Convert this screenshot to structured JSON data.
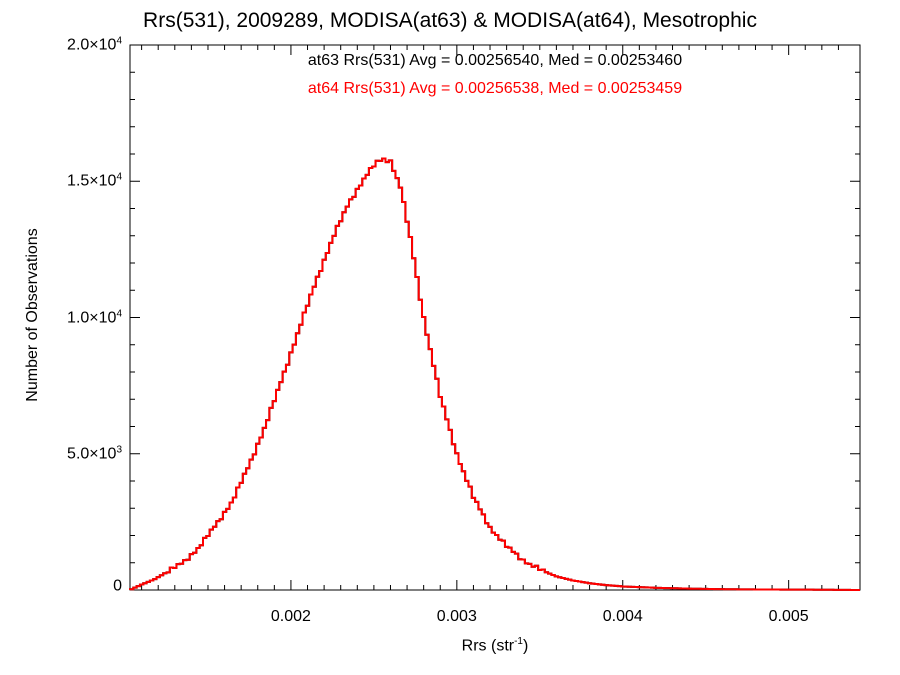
{
  "chart_data": {
    "type": "histogram-step",
    "title": "Rrs(531), 2009289, MODISA(at63) & MODISA(at64), Mesotrophic",
    "xlabel": {
      "text": "Rrs (str",
      "sup": "-1",
      "close": ")"
    },
    "ylabel": "Number of Observations",
    "xlim": [
      0.00103,
      0.00543
    ],
    "ylim": [
      0,
      20000
    ],
    "x_ticks": [
      {
        "value": 0.002,
        "label": "0.002"
      },
      {
        "value": 0.003,
        "label": "0.003"
      },
      {
        "value": 0.004,
        "label": "0.004"
      },
      {
        "value": 0.005,
        "label": "0.005"
      }
    ],
    "y_ticks": [
      {
        "value": 0,
        "mant": "0",
        "exp": ""
      },
      {
        "value": 5000,
        "mant": "5.0×10",
        "exp": "3"
      },
      {
        "value": 10000,
        "mant": "1.0×10",
        "exp": "4"
      },
      {
        "value": 15000,
        "mant": "1.5×10",
        "exp": "4"
      },
      {
        "value": 20000,
        "mant": "2.0×10",
        "exp": "4"
      }
    ],
    "annotations": [
      {
        "text": "at63 Rrs(531) Avg = 0.00256540, Med = 0.00253460",
        "color": "#000000"
      },
      {
        "text": "at64 Rrs(531) Avg = 0.00256538, Med = 0.00253459",
        "color": "#ff0000"
      }
    ],
    "series": [
      {
        "name": "at63",
        "color": "#000000"
      },
      {
        "name": "at64",
        "color": "#ff0000"
      }
    ],
    "x": [
      0.00103,
      0.0011,
      0.00118,
      0.00125,
      0.00135,
      0.00145,
      0.00155,
      0.00165,
      0.00175,
      0.00185,
      0.00195,
      0.00205,
      0.00215,
      0.00225,
      0.00235,
      0.00245,
      0.00252,
      0.00256,
      0.0026,
      0.00266,
      0.00272,
      0.0028,
      0.0029,
      0.003,
      0.0031,
      0.0032,
      0.0033,
      0.0034,
      0.0035,
      0.0036,
      0.0037,
      0.0038,
      0.0039,
      0.004,
      0.0042,
      0.0044,
      0.0046,
      0.0048,
      0.005,
      0.0052,
      0.00543
    ],
    "values": [
      0,
      200,
      400,
      650,
      1000,
      1600,
      2400,
      3300,
      4600,
      6100,
      7800,
      9600,
      11300,
      12900,
      14200,
      15200,
      15700,
      15800,
      15750,
      14800,
      12900,
      10000,
      7100,
      5000,
      3400,
      2300,
      1600,
      1100,
      750,
      500,
      350,
      250,
      180,
      130,
      80,
      50,
      30,
      20,
      15,
      10,
      0
    ]
  }
}
